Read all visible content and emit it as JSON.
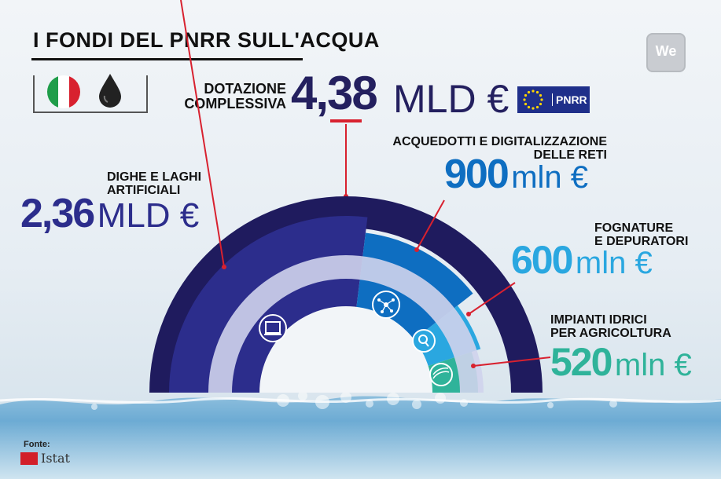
{
  "title": "I FONDI DEL PNRR SULL'ACQUA",
  "logo_text": "We",
  "total": {
    "label_line1": "DOTAZIONE",
    "label_line2": "COMPLESSIVA",
    "value": "4,38",
    "unit": "MLD €"
  },
  "eu_badge": "PNRR",
  "segments": {
    "dighe": {
      "line1": "DIGHE E LAGHI",
      "line2": "ARTIFICIALI",
      "value": "2,36",
      "unit": "MLD €",
      "amount_mln": 2360,
      "color": "#2c2d8c"
    },
    "acquedotti": {
      "line1": "ACQUEDOTTI E DIGITALIZZAZIONE",
      "line2": "DELLE RETI",
      "value": "900",
      "unit": "mln €",
      "amount_mln": 900,
      "color": "#0e6ec1"
    },
    "fognature": {
      "line1": "FOGNATURE",
      "line2": "E DEPURATORI",
      "value": "600",
      "unit": "mln €",
      "amount_mln": 600,
      "color": "#2aa7e0"
    },
    "impianti": {
      "line1": "IMPIANTI IDRICI",
      "line2": "PER AGRICOLTURA",
      "value": "520",
      "unit": "mln €",
      "amount_mln": 520,
      "color": "#2fb39a"
    }
  },
  "colors": {
    "outer_ring": "#1f1b5e",
    "accent_red": "#d8212f",
    "text_dark": "#24205f"
  },
  "icons": [
    "dam-icon",
    "network-icon",
    "water-quality-icon",
    "field-icon"
  ],
  "source": {
    "label": "Fonte:",
    "name": "Istat"
  }
}
